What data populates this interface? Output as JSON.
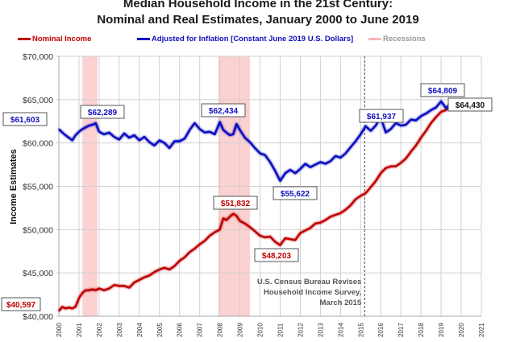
{
  "chart_data": {
    "type": "line",
    "title": "Median Household Income in the 21st Century:",
    "subtitle": "Nominal and Real Estimates, January 2000 to June 2019",
    "xlabel": "",
    "ylabel": "Income Estimates",
    "xlim": [
      2000,
      2021
    ],
    "ylim": [
      40000,
      70000
    ],
    "grid": true,
    "legend_position": "top",
    "x_ticks": [
      "2000",
      "2001",
      "2002",
      "2003",
      "2004",
      "2005",
      "2006",
      "2007",
      "2008",
      "2009",
      "2010",
      "2011",
      "2012",
      "2013",
      "2014",
      "2015",
      "2016",
      "2017",
      "2018",
      "2019",
      "2020",
      "2021"
    ],
    "y_ticks": [
      "$40,000",
      "$45,000",
      "$50,000",
      "$55,000",
      "$60,000",
      "$65,000",
      "$70,000"
    ],
    "y_tick_values": [
      40000,
      45000,
      50000,
      55000,
      60000,
      65000,
      70000
    ],
    "legend": [
      {
        "label": "Nominal Income",
        "color": "#c00000"
      },
      {
        "label": "Adjusted for Inflation [Constant June 2019 U.S. Dollars]",
        "color": "#1010c0"
      },
      {
        "label": "Recessions",
        "color": "#f7b6b6"
      }
    ],
    "recessions": [
      [
        2001.17,
        2001.92
      ],
      [
        2007.92,
        2009.5
      ]
    ],
    "revision_line": {
      "x": 2015.2,
      "label_lines": [
        "U.S. Census Bureau Revises",
        "Household Income Survey,",
        "March 2015"
      ]
    },
    "series": [
      {
        "name": "Nominal Income",
        "color": "#c00000",
        "x": [
          2000.0,
          2000.17,
          2000.33,
          2000.5,
          2000.67,
          2000.83,
          2001.0,
          2001.17,
          2001.33,
          2001.5,
          2001.67,
          2001.83,
          2002.0,
          2002.25,
          2002.5,
          2002.75,
          2003.0,
          2003.25,
          2003.5,
          2003.75,
          2004.0,
          2004.25,
          2004.5,
          2004.75,
          2005.0,
          2005.25,
          2005.5,
          2005.75,
          2006.0,
          2006.25,
          2006.5,
          2006.75,
          2007.0,
          2007.25,
          2007.5,
          2007.75,
          2008.0,
          2008.17,
          2008.33,
          2008.5,
          2008.67,
          2008.83,
          2009.0,
          2009.25,
          2009.5,
          2009.75,
          2010.0,
          2010.25,
          2010.5,
          2010.75,
          2011.0,
          2011.25,
          2011.5,
          2011.75,
          2012.0,
          2012.25,
          2012.5,
          2012.75,
          2013.0,
          2013.25,
          2013.5,
          2013.75,
          2014.0,
          2014.25,
          2014.5,
          2014.75,
          2015.0,
          2015.25,
          2015.5,
          2015.75,
          2016.0,
          2016.25,
          2016.5,
          2016.75,
          2017.0,
          2017.25,
          2017.5,
          2017.75,
          2018.0,
          2018.25,
          2018.5,
          2018.75,
          2019.0,
          2019.25,
          2019.42
        ],
        "values": [
          40597,
          41100,
          40900,
          41000,
          40900,
          41100,
          42100,
          42700,
          43000,
          43000,
          43100,
          43000,
          43200,
          43000,
          43200,
          43600,
          43500,
          43500,
          43300,
          43900,
          44200,
          44500,
          44700,
          45100,
          45400,
          45600,
          45400,
          45800,
          46400,
          46800,
          47400,
          47800,
          48300,
          48700,
          49300,
          49700,
          50000,
          51300,
          51100,
          51500,
          51832,
          51600,
          51000,
          50700,
          50300,
          49800,
          49300,
          49100,
          49200,
          48600,
          48203,
          49000,
          48900,
          48800,
          49600,
          49900,
          50200,
          50700,
          50800,
          51100,
          51500,
          51700,
          51900,
          52300,
          52800,
          53500,
          53900,
          54200,
          54900,
          55600,
          56500,
          57100,
          57300,
          57300,
          57700,
          58200,
          59000,
          59700,
          60600,
          61400,
          62300,
          63000,
          63600,
          63800,
          64200
        ]
      },
      {
        "name": "Adjusted for Inflation [Constant June 2019 U.S. Dollars]",
        "color": "#1010c0",
        "x": [
          2000.0,
          2000.17,
          2000.33,
          2000.5,
          2000.67,
          2000.83,
          2001.0,
          2001.17,
          2001.33,
          2001.5,
          2001.67,
          2001.83,
          2002.0,
          2002.25,
          2002.5,
          2002.75,
          2003.0,
          2003.25,
          2003.5,
          2003.75,
          2004.0,
          2004.25,
          2004.5,
          2004.75,
          2005.0,
          2005.25,
          2005.5,
          2005.75,
          2006.0,
          2006.25,
          2006.5,
          2006.75,
          2007.0,
          2007.25,
          2007.5,
          2007.75,
          2008.0,
          2008.17,
          2008.33,
          2008.5,
          2008.67,
          2008.83,
          2009.0,
          2009.25,
          2009.5,
          2009.75,
          2010.0,
          2010.25,
          2010.5,
          2010.75,
          2011.0,
          2011.25,
          2011.5,
          2011.75,
          2012.0,
          2012.25,
          2012.5,
          2012.75,
          2013.0,
          2013.25,
          2013.5,
          2013.75,
          2014.0,
          2014.25,
          2014.5,
          2014.75,
          2015.0,
          2015.25,
          2015.5,
          2015.75,
          2016.0,
          2016.25,
          2016.5,
          2016.75,
          2017.0,
          2017.25,
          2017.5,
          2017.75,
          2018.0,
          2018.25,
          2018.5,
          2018.75,
          2019.0,
          2019.25,
          2019.42
        ],
        "values": [
          61603,
          61200,
          60900,
          60600,
          60300,
          60900,
          61300,
          61600,
          61800,
          62000,
          62100,
          62289,
          61300,
          61000,
          61200,
          60700,
          60400,
          61100,
          60600,
          60900,
          60300,
          60700,
          60100,
          59700,
          60300,
          60000,
          59400,
          60200,
          60200,
          60500,
          61500,
          62300,
          61600,
          61200,
          61300,
          61000,
          62434,
          61500,
          61200,
          60900,
          61000,
          62200,
          61500,
          60600,
          60100,
          59400,
          58800,
          58600,
          57800,
          56800,
          55622,
          56500,
          56900,
          56500,
          57000,
          57600,
          57200,
          57500,
          57800,
          57600,
          57900,
          58500,
          58300,
          58800,
          59500,
          60200,
          61000,
          61937,
          61400,
          62000,
          63000,
          61200,
          61600,
          62300,
          62000,
          62100,
          62700,
          62600,
          63100,
          63400,
          63800,
          64100,
          64809,
          64000,
          64430
        ]
      }
    ],
    "annotations": [
      {
        "label": "$61,603",
        "series": "real"
      },
      {
        "label": "$62,289",
        "series": "real"
      },
      {
        "label": "$62,434",
        "series": "real"
      },
      {
        "label": "$55,622",
        "series": "real"
      },
      {
        "label": "$61,937",
        "series": "real"
      },
      {
        "label": "$64,809",
        "series": "real"
      },
      {
        "label": "$64,430",
        "series": "latest"
      },
      {
        "label": "$40,597",
        "series": "nominal"
      },
      {
        "label": "$51,832",
        "series": "nominal"
      },
      {
        "label": "$48,203",
        "series": "nominal"
      }
    ]
  }
}
